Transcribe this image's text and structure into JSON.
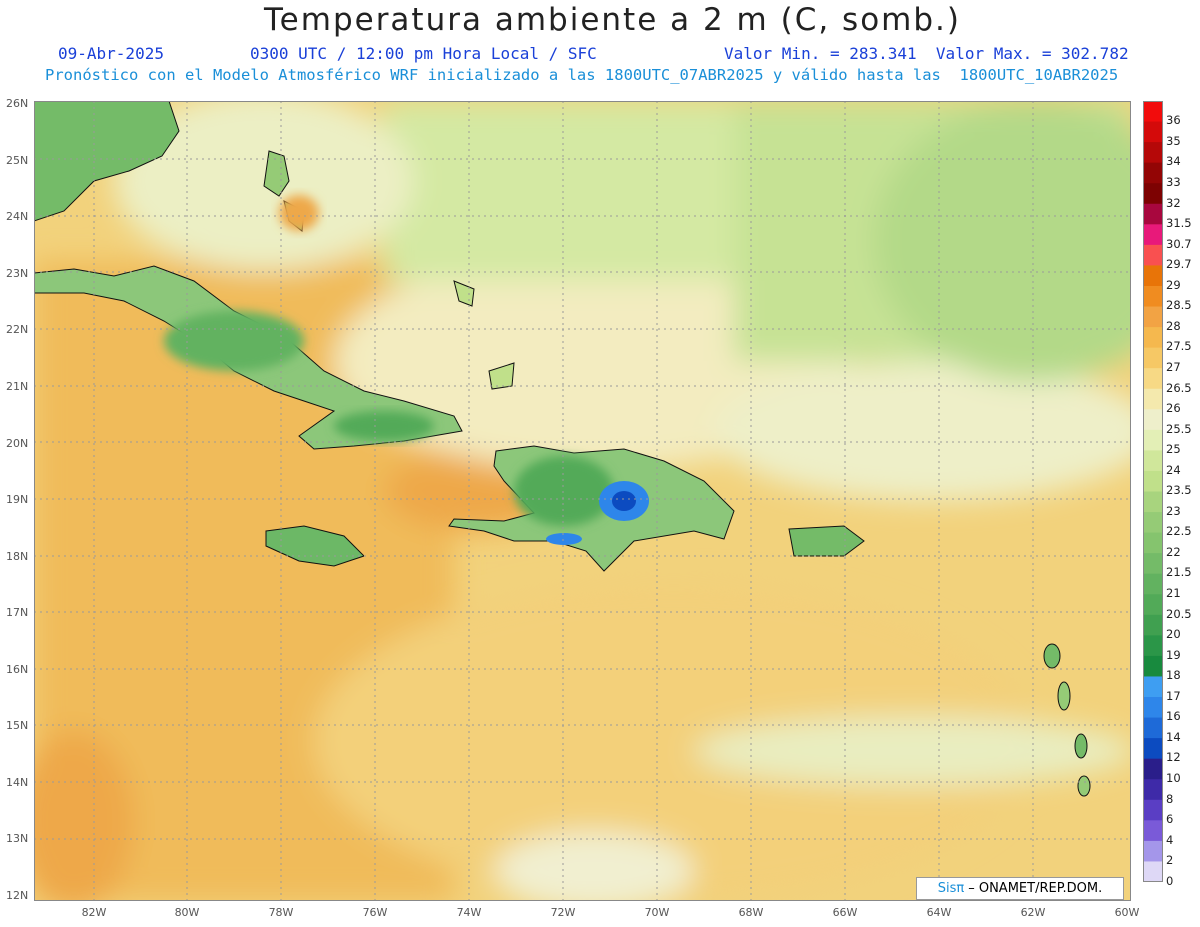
{
  "header": {
    "title": "Temperatura ambiente a 2 m (C, somb.)",
    "date": "09-Abr-2025",
    "time": "0300 UTC / 12:00 pm Hora Local / SFC",
    "minmax": "Valor Min. = 283.341  Valor Max. = 302.782",
    "model_info": "Pronóstico con el Modelo Atmosférico WRF inicializado a las 1800UTC_07ABR2025 y válido hasta las  1800UTC_10ABR2025"
  },
  "axes": {
    "lat_labels": [
      "26N",
      "25N",
      "24N",
      "23N",
      "22N",
      "21N",
      "20N",
      "19N",
      "18N",
      "17N",
      "16N",
      "15N",
      "14N",
      "13N",
      "12N"
    ],
    "lon_labels": [
      "82W",
      "80W",
      "78W",
      "76W",
      "74W",
      "72W",
      "70W",
      "68W",
      "66W",
      "64W",
      "62W",
      "60W"
    ]
  },
  "colorbar": {
    "labels": [
      "36",
      "35",
      "34",
      "33",
      "32",
      "31.5",
      "30.7",
      "29.7",
      "29",
      "28.5",
      "28",
      "27.5",
      "27",
      "26.5",
      "26",
      "25.5",
      "25",
      "24",
      "23.5",
      "23",
      "22.5",
      "22",
      "21.5",
      "21",
      "20.5",
      "20",
      "19",
      "18",
      "17",
      "16",
      "14",
      "12",
      "10",
      "8",
      "6",
      "4",
      "2",
      "0"
    ],
    "colors": [
      "#f20c0c",
      "#d40a0a",
      "#b50808",
      "#930505",
      "#7d0202",
      "#a8073e",
      "#e8197a",
      "#f95050",
      "#e87408",
      "#f08c20",
      "#f2a344",
      "#f5b84e",
      "#f6c865",
      "#f7d985",
      "#f4e9ad",
      "#eeefcb",
      "#e3efb6",
      "#d0e79b",
      "#c0e08a",
      "#a8d47e",
      "#95cb76",
      "#85c46e",
      "#74bb68",
      "#62b260",
      "#52aa58",
      "#40a050",
      "#2b9648",
      "#188a3e",
      "#3e9ef2",
      "#2e86ea",
      "#1e6ad8",
      "#0c4bc0",
      "#2a1e8a",
      "#3e2aa8",
      "#5a3ec4",
      "#7a5ad8",
      "#a496ea",
      "#ded8f6"
    ]
  },
  "credit": {
    "brand": "Sisπ",
    "text": "– ONAMET/REP.DOM."
  },
  "map_features": [
    "Cuba",
    "Jamaica",
    "Hispaniola",
    "Puerto Rico",
    "Bahamas",
    "Florida",
    "Lesser Antilles"
  ]
}
